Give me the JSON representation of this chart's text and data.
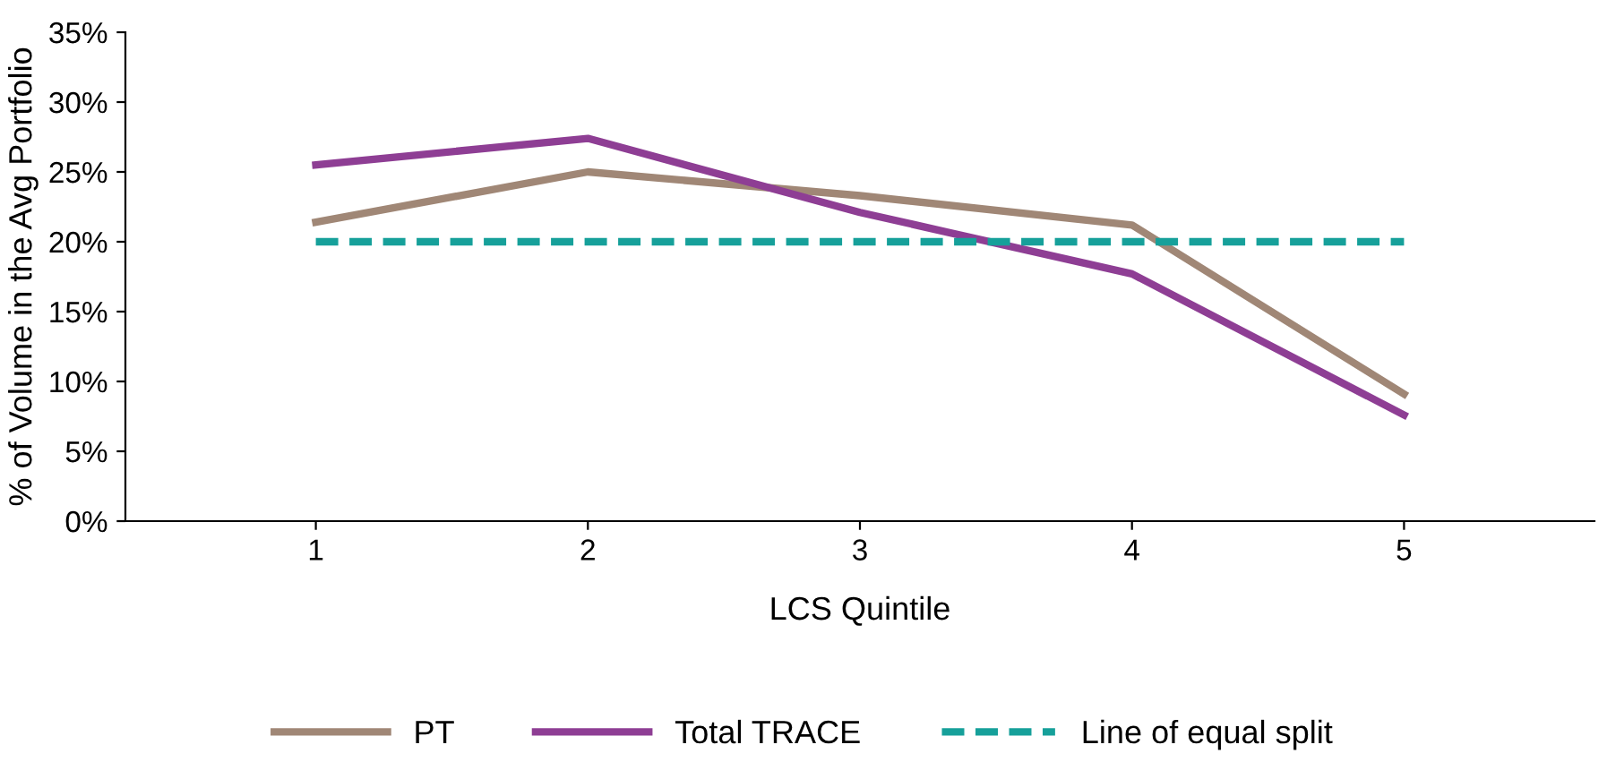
{
  "chart_data": {
    "type": "line",
    "xlabel": "LCS Quintile",
    "ylabel": "% of Volume in the Avg Portfolio",
    "categories": [
      "1",
      "2",
      "3",
      "4",
      "5"
    ],
    "series": [
      {
        "name": "PT",
        "color": "#a08776",
        "values": [
          21.4,
          25.0,
          23.3,
          21.2,
          9.1
        ]
      },
      {
        "name": "Total TRACE",
        "color": "#8e3e94",
        "values": [
          25.5,
          27.4,
          22.1,
          17.7,
          7.6
        ]
      },
      {
        "name": "Line of equal split",
        "color": "#16a09a",
        "values": [
          20,
          20,
          20,
          20,
          20
        ],
        "line_style": "dashed"
      }
    ],
    "ylim": [
      0,
      35
    ],
    "yticks": [
      {
        "value": 0,
        "label": "0%"
      },
      {
        "value": 5,
        "label": "5%"
      },
      {
        "value": 10,
        "label": "10%"
      },
      {
        "value": 15,
        "label": "15%"
      },
      {
        "value": 20,
        "label": "20%"
      },
      {
        "value": 25,
        "label": "25%"
      },
      {
        "value": 30,
        "label": "30%"
      },
      {
        "value": 35,
        "label": "35%"
      }
    ],
    "grid": false,
    "legend": "bottom"
  }
}
